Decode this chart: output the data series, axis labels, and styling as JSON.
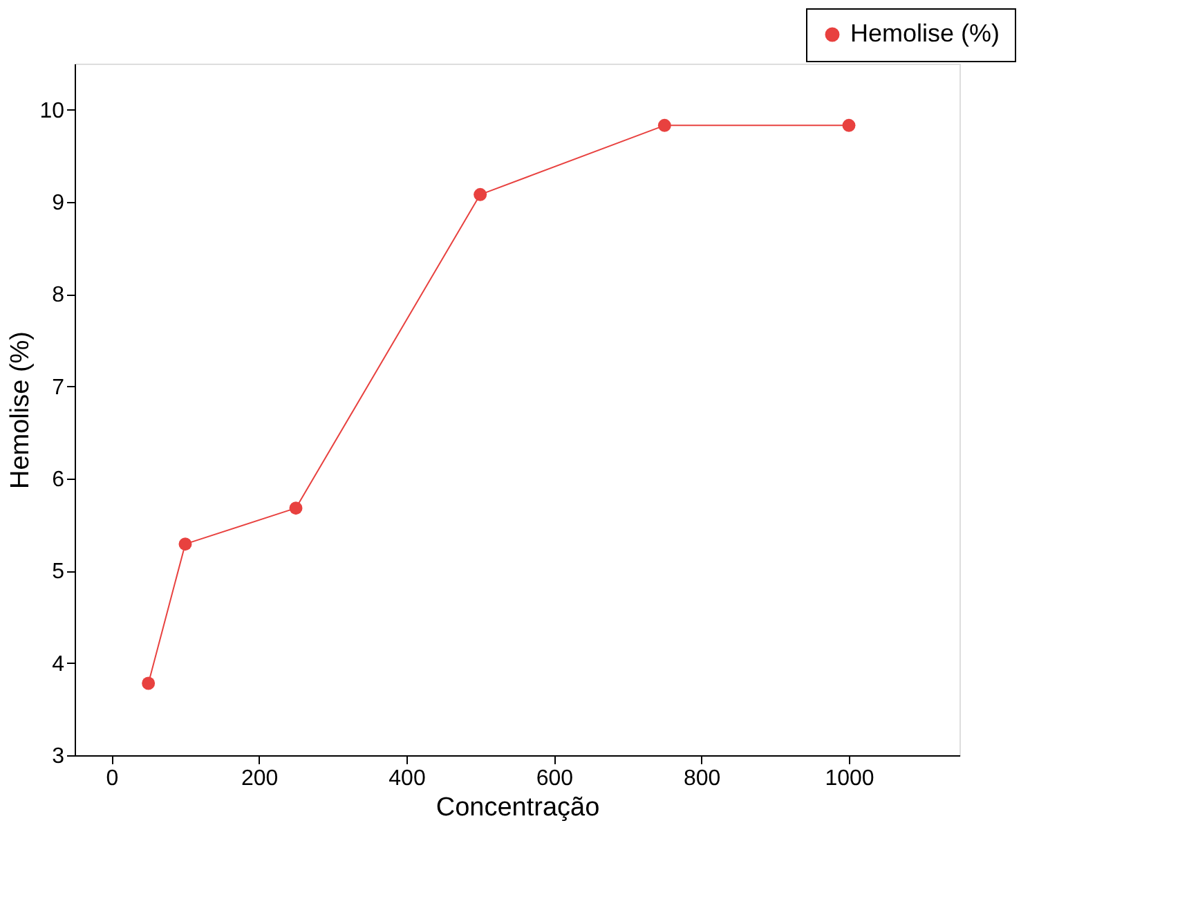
{
  "chart_data": {
    "type": "line",
    "xlabel": "Concentração",
    "ylabel": "Hemolise (%)",
    "x": [
      50,
      100,
      250,
      500,
      750,
      1000
    ],
    "series": [
      {
        "name": "Hemolise (%)",
        "color": "#e8413f",
        "values": [
          3.78,
          5.29,
          5.68,
          9.08,
          9.83,
          9.83
        ]
      }
    ],
    "xlim": [
      -50,
      1150
    ],
    "xticks": [
      0,
      200,
      400,
      600,
      800,
      1000
    ],
    "ylim": [
      3,
      10.5
    ],
    "yticks": [
      3,
      4,
      5,
      6,
      7,
      8,
      9,
      10
    ],
    "marker": "circle",
    "line_style": "solid",
    "grid": false,
    "legend": "top right"
  }
}
